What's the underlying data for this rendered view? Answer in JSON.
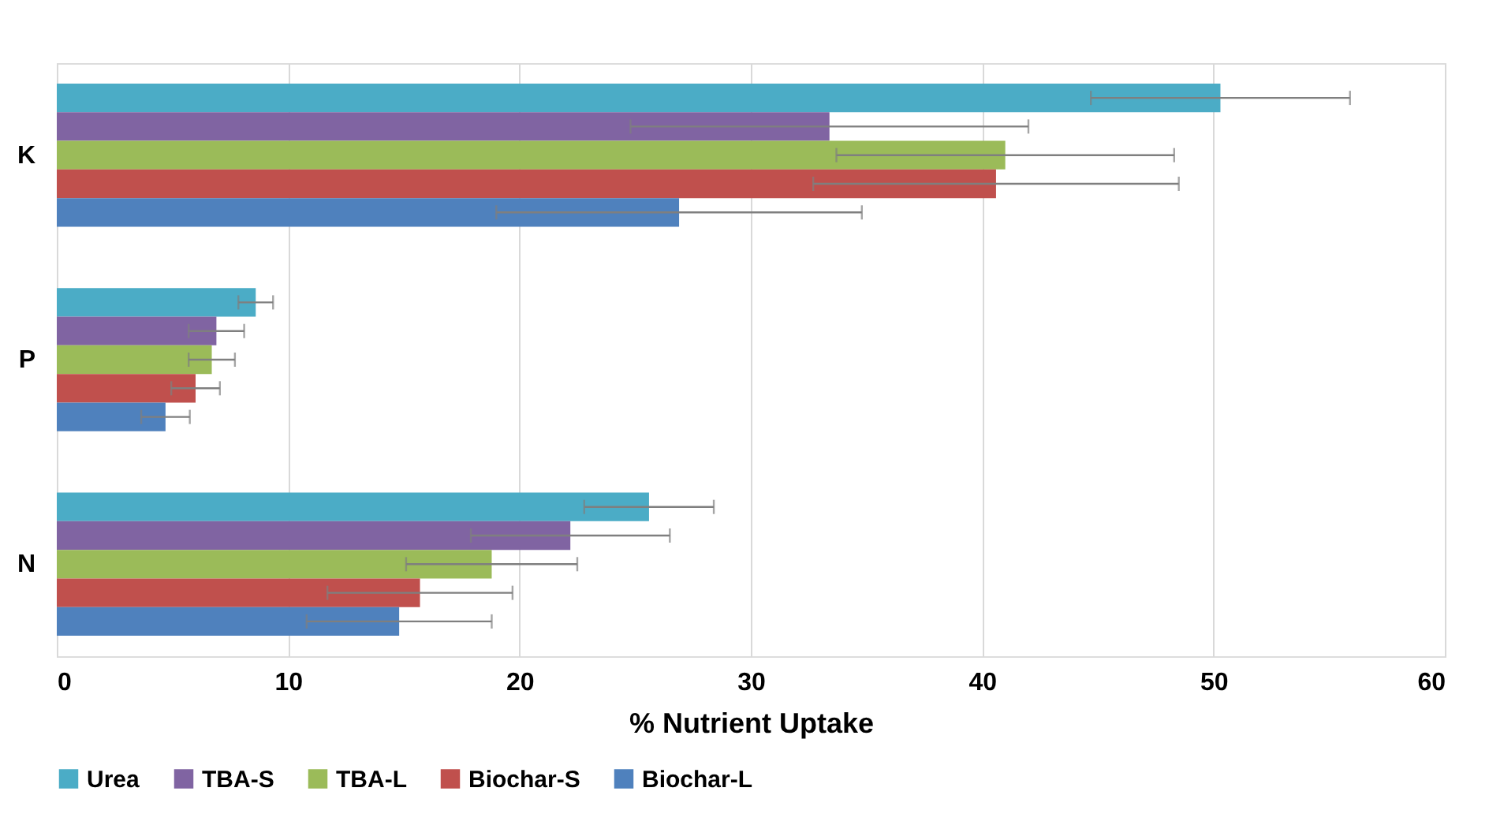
{
  "chart_data": {
    "type": "bar",
    "orientation": "horizontal",
    "xlabel": "% Nutrient Uptake",
    "categories": [
      "K",
      "P",
      "N"
    ],
    "series": [
      {
        "name": "Urea",
        "color": "#4bacc6",
        "values": [
          50.3,
          8.6,
          25.6
        ],
        "errors": [
          5.6,
          0.75,
          2.8
        ]
      },
      {
        "name": "TBA-S",
        "color": "#8064a2",
        "values": [
          33.4,
          6.9,
          22.2
        ],
        "errors": [
          8.6,
          1.2,
          4.3
        ]
      },
      {
        "name": "TBA-L",
        "color": "#9bbb59",
        "values": [
          41.0,
          6.7,
          18.8
        ],
        "errors": [
          7.3,
          1.0,
          3.7
        ]
      },
      {
        "name": "Biochar-S",
        "color": "#c0504d",
        "values": [
          40.6,
          6.0,
          15.7
        ],
        "errors": [
          7.9,
          1.05,
          4.0
        ]
      },
      {
        "name": "Biochar-L",
        "color": "#4f81bd",
        "values": [
          26.9,
          4.7,
          14.8
        ],
        "errors": [
          7.9,
          1.05,
          4.0
        ]
      }
    ],
    "xlim": [
      0,
      60
    ],
    "xticks": [
      0,
      10,
      20,
      30,
      40,
      50,
      60
    ],
    "grid": "x",
    "legend": "bottom"
  }
}
